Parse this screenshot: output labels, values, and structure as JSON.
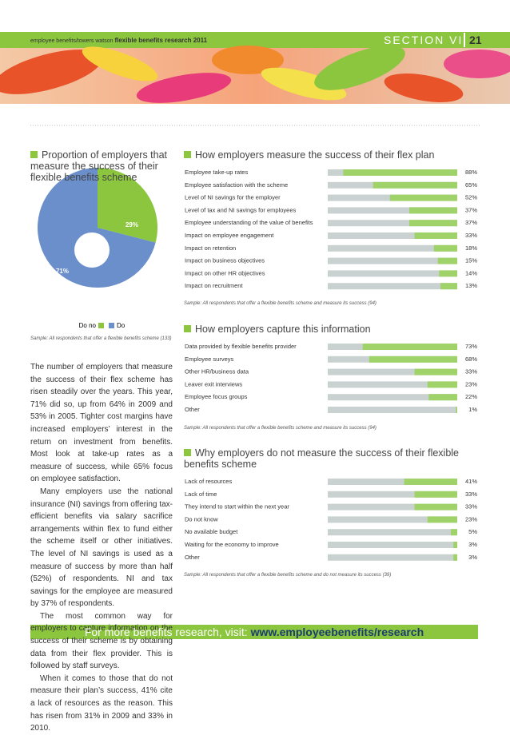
{
  "header": {
    "publication": "employee benefits/towers watson",
    "report": "flexible benefits research 2011",
    "section": "SECTION VII",
    "page": "21"
  },
  "pie": {
    "type": "pie",
    "title": "Proportion of employers that measure the success of their flexible benefits scheme",
    "categories": [
      "Do no",
      "Do"
    ],
    "values": [
      29,
      71
    ],
    "value_labels": [
      "29%",
      "71%"
    ],
    "colors": [
      "#8cc63f",
      "#6b8fcb"
    ],
    "note": "Sample: All respondents that offer a flexible benefits scheme (133)"
  },
  "bar_charts": [
    {
      "type": "bar",
      "title": "How employers measure the success of their flex plan",
      "xlim": [
        0,
        100
      ],
      "color": "#9fd36a",
      "track": "#c9d2d0",
      "categories": [
        "Employee take-up rates",
        "Employee satisfaction with the scheme",
        "Level of NI savings for the employer",
        "Level of tax and NI savings for employees",
        "Employee understanding of the value of benefits",
        "Impact on employee engagement",
        "Impact on retention",
        "Impact on business objectives",
        "Impact on other HR objectives",
        "Impact on recruitment"
      ],
      "values": [
        88,
        65,
        52,
        37,
        37,
        33,
        18,
        15,
        14,
        13
      ],
      "value_labels": [
        "88%",
        "65%",
        "52%",
        "37%",
        "37%",
        "33%",
        "18%",
        "15%",
        "14%",
        "13%"
      ],
      "note": "Sample: All respondents that offer a flexible benefits scheme and measure its success (94)"
    },
    {
      "type": "bar",
      "title": "How employers capture this information",
      "xlim": [
        0,
        100
      ],
      "color": "#9fd36a",
      "track": "#c9d2d0",
      "categories": [
        "Data provided by flexible benefits provider",
        "Employee surveys",
        "Other HR/business data",
        "Leaver exit interviews",
        "Employee focus groups",
        "Other"
      ],
      "values": [
        73,
        68,
        33,
        23,
        22,
        1
      ],
      "value_labels": [
        "73%",
        "68%",
        "33%",
        "23%",
        "22%",
        "1%"
      ],
      "note": "Sample: All respondents that offer a flexible benefits scheme and measure its success (94)"
    },
    {
      "type": "bar",
      "title": "Why employers do not measure the success of their flexible benefits scheme",
      "xlim": [
        0,
        100
      ],
      "color": "#9fd36a",
      "track": "#c9d2d0",
      "categories": [
        "Lack of resources",
        "Lack of time",
        "They intend to start within the next year",
        "Do not know",
        "No available budget",
        "Waiting for the economy to improve",
        "Other"
      ],
      "values": [
        41,
        33,
        33,
        23,
        5,
        3,
        3
      ],
      "value_labels": [
        "41%",
        "33%",
        "33%",
        "23%",
        "5%",
        "3%",
        "3%"
      ],
      "note": "Sample: All respondents that offer a flexible benefits scheme and do not measure its success (39)"
    }
  ],
  "body": [
    "The number of employers that measure the success of their flex scheme has risen steadily over the years. This year, 71% did so, up from 64% in 2009 and 53% in 2005. Tighter cost margins have increased employers’ interest in the return on investment from benefits. Most look at take-up rates as a measure of success, while 65% focus on employee satisfaction.",
    "Many employers use the national insurance (NI) savings from offering tax-efficient benefits via salary sacrifice arrangements within flex to fund either the scheme itself or other initiatives. The level of NI savings is used as a measure of success by more than half (52%) of respondents. NI and tax savings for the employee are measured by 37% of respondents.",
    "The most common way for employers to capture information on the success of their scheme is by obtaining data from their flex provider. This is followed by staff surveys.",
    "When it comes to those that do not measure their plan’s success, 41% cite a lack of resources as the reason. This has risen from 31% in 2009 and 33% in 2010."
  ],
  "footer": {
    "text": "For more benefits research, visit:",
    "url": "www.employeebenefits/research"
  }
}
